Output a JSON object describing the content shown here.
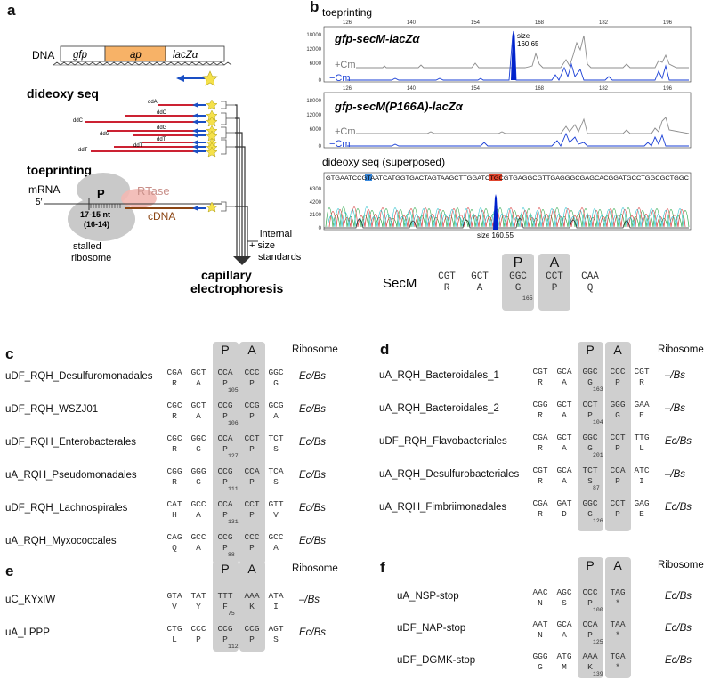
{
  "panels": {
    "a": "a",
    "b": "b",
    "c": "c",
    "d": "d",
    "e": "e",
    "f": "f"
  },
  "panel_a": {
    "dna_label": "DNA",
    "genes": [
      "gfp",
      "ap",
      "lacZα"
    ],
    "dideoxy_title": "dideoxy seq",
    "dd_labels": [
      "ddA",
      "ddC",
      "ddG",
      "ddT"
    ],
    "toeprint_title": "toeprinting",
    "mrna_label": "mRNA",
    "five_prime": "5′",
    "p_site": "P",
    "rtase": "RTase",
    "cdna": "cDNA",
    "nt_range": "17-15 nt",
    "nt_alt": "(16-14)",
    "stalled": "stalled",
    "ribosome": "ribosome",
    "standards": [
      "internal",
      "+ size",
      "standards"
    ],
    "capillary": [
      "capillary",
      "electrophoresis"
    ],
    "colors": {
      "ap": "#f7b267",
      "arrow": "#1a4fc4",
      "star": "#f5e14a",
      "red": "#cc2233"
    }
  },
  "panel_b": {
    "toeprinting_title": "toeprinting",
    "x_ticks": [
      "126",
      "140",
      "154",
      "168",
      "182",
      "196"
    ],
    "trace1_title": "gfp-secM-lacZα",
    "trace2_title": "gfp-secM(P166A)-lacZα",
    "y_ticks": [
      "18000",
      "12000",
      "6000",
      "0"
    ],
    "plus_cm": "+Cm",
    "minus_cm": "−Cm",
    "peak_size_label": "size",
    "peak_size_value": "160.65",
    "dideoxy_title": "dideoxy seq (superposed)",
    "sequence": "GTGAATCCGTAATCATGGTGACTAGTAAGCTTGGATCTGCGTGAGGCGTTGAGGGCGAGCACGGATGCCTGGCGCTGGC",
    "seq_y_ticks": [
      "6300",
      "4200",
      "2100",
      "0"
    ],
    "seq_size_label": "size 160.55",
    "secm_label": "SecM",
    "secm_codons": [
      {
        "codon": "CGT",
        "aa": "R"
      },
      {
        "codon": "GCT",
        "aa": "A"
      },
      {
        "codon": "GGC",
        "aa": "G",
        "pos": "165"
      },
      {
        "codon": "CCT",
        "aa": "P"
      },
      {
        "codon": "CAA",
        "aa": "Q"
      }
    ],
    "p_label": "P",
    "a_label": "A",
    "colors": {
      "plus": "#7a7a7a",
      "minus": "#1a3fd6",
      "peak": "#0022cc",
      "highlight_blue": "#3a8be0",
      "highlight_red": "#e0452e"
    }
  },
  "panel_c": {
    "p_label": "P",
    "a_label": "A",
    "ribosome_header": "Ribosome",
    "rows": [
      {
        "name": "uDF_RQH_Desulfuromonadales",
        "codons": [
          "CGA",
          "GCT",
          "CCA",
          "CCC",
          "GGC"
        ],
        "aas": [
          "R",
          "A",
          "P",
          "P",
          "G"
        ],
        "pos": "105",
        "ribosome": "Ec/Bs"
      },
      {
        "name": "uDF_RQH_WSZJ01",
        "codons": [
          "CGC",
          "GCT",
          "CCG",
          "CCG",
          "GCG"
        ],
        "aas": [
          "R",
          "A",
          "P",
          "P",
          "A"
        ],
        "pos": "106",
        "ribosome": "Ec/Bs"
      },
      {
        "name": "uDF_RQH_Enterobacterales",
        "codons": [
          "CGC",
          "GGC",
          "CCA",
          "CCT",
          "TCT"
        ],
        "aas": [
          "R",
          "G",
          "P",
          "P",
          "S"
        ],
        "pos": "127",
        "ribosome": "Ec/Bs"
      },
      {
        "name": "uA_RQH_Pseudomonadales",
        "codons": [
          "CGG",
          "GGG",
          "CCG",
          "CCA",
          "TCA"
        ],
        "aas": [
          "R",
          "G",
          "P",
          "P",
          "S"
        ],
        "pos": "111",
        "ribosome": "Ec/Bs"
      },
      {
        "name": "uDF_RQH_Lachnospirales",
        "codons": [
          "CAT",
          "GCC",
          "CCA",
          "CCT",
          "GTT"
        ],
        "aas": [
          "H",
          "A",
          "P",
          "P",
          "V"
        ],
        "pos": "131",
        "ribosome": "Ec/Bs"
      },
      {
        "name": "uA_RQH_Myxococcales",
        "codons": [
          "CAG",
          "GCC",
          "CCG",
          "CCC",
          "GCC"
        ],
        "aas": [
          "Q",
          "A",
          "P",
          "P",
          "A"
        ],
        "pos": "88",
        "ribosome": "Ec/Bs"
      }
    ]
  },
  "panel_d": {
    "p_label": "P",
    "a_label": "A",
    "ribosome_header": "Ribosome",
    "rows": [
      {
        "name": "uA_RQH_Bacteroidales_1",
        "codons": [
          "CGT",
          "GCA",
          "GGC",
          "CCC",
          "CGT"
        ],
        "aas": [
          "R",
          "A",
          "G",
          "P",
          "R"
        ],
        "pos": "163",
        "ribosome": "–/Bs"
      },
      {
        "name": "uA_RQH_Bacteroidales_2",
        "codons": [
          "CGG",
          "GCT",
          "CCT",
          "GGG",
          "GAA"
        ],
        "aas": [
          "R",
          "A",
          "P",
          "G",
          "E"
        ],
        "pos": "104",
        "ribosome": "–/Bs"
      },
      {
        "name": "uDF_RQH_Flavobacteriales",
        "codons": [
          "CGA",
          "GCT",
          "GGC",
          "CCT",
          "TTG"
        ],
        "aas": [
          "R",
          "A",
          "G",
          "P",
          "L"
        ],
        "pos": "201",
        "ribosome": "Ec/Bs"
      },
      {
        "name": "uA_RQH_Desulfurobacteriales",
        "codons": [
          "CGT",
          "GCA",
          "TCT",
          "CCA",
          "ATC"
        ],
        "aas": [
          "R",
          "A",
          "S",
          "P",
          "I"
        ],
        "pos": "87",
        "ribosome": "–/Bs"
      },
      {
        "name": "uA_RQH_Fimbriimonadales",
        "codons": [
          "CGA",
          "GAT",
          "GGC",
          "CCT",
          "GAG"
        ],
        "aas": [
          "R",
          "D",
          "G",
          "P",
          "E"
        ],
        "pos": "126",
        "ribosome": "Ec/Bs"
      }
    ]
  },
  "panel_e": {
    "p_label": "P",
    "a_label": "A",
    "ribosome_header": "Ribosome",
    "rows": [
      {
        "name": "uC_KYxIW",
        "codons": [
          "GTA",
          "TAT",
          "TTT",
          "AAA",
          "ATA"
        ],
        "aas": [
          "V",
          "Y",
          "F",
          "K",
          "I"
        ],
        "pos": "75",
        "ribosome": "–/Bs"
      },
      {
        "name": "uA_LPPP",
        "codons": [
          "CTG",
          "CCC",
          "CCG",
          "CCG",
          "AGT"
        ],
        "aas": [
          "L",
          "P",
          "P",
          "P",
          "S"
        ],
        "pos": "112",
        "ribosome": "Ec/Bs"
      }
    ]
  },
  "panel_f": {
    "p_label": "P",
    "a_label": "A",
    "ribosome_header": "Ribosome",
    "rows": [
      {
        "name": "uA_NSP-stop",
        "codons": [
          "AAC",
          "AGC",
          "CCC",
          "TAG"
        ],
        "aas": [
          "N",
          "S",
          "P",
          "*"
        ],
        "pos": "100",
        "ribosome": "Ec/Bs"
      },
      {
        "name": "uDF_NAP-stop",
        "codons": [
          "AAT",
          "GCA",
          "CCA",
          "TAA"
        ],
        "aas": [
          "N",
          "A",
          "P",
          "*"
        ],
        "pos": "125",
        "ribosome": "Ec/Bs"
      },
      {
        "name": "uDF_DGMK-stop",
        "codons": [
          "GGG",
          "ATG",
          "AAA",
          "TGA"
        ],
        "aas": [
          "G",
          "M",
          "K",
          "*"
        ],
        "pos": "139",
        "ribosome": "Ec/Bs"
      }
    ]
  }
}
